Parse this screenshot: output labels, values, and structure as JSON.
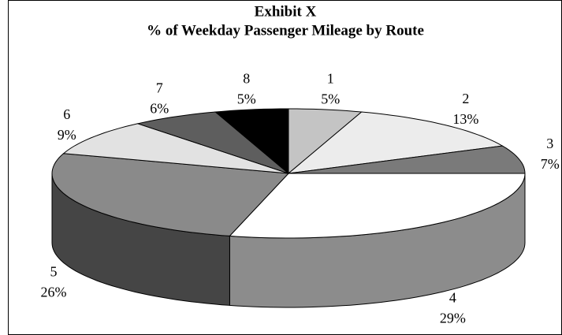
{
  "chart_data": {
    "type": "pie",
    "title": "Exhibit X",
    "subtitle": "% of Weekday Passenger Mileage by Route",
    "categories": [
      "1",
      "2",
      "3",
      "4",
      "5",
      "6",
      "7",
      "8"
    ],
    "values": [
      5,
      13,
      7,
      29,
      26,
      9,
      6,
      5
    ],
    "value_labels": [
      "5%",
      "13%",
      "7%",
      "29%",
      "26%",
      "9%",
      "6%",
      "5%"
    ],
    "colors": [
      "#c4c4c4",
      "#ececec",
      "#7a7a7a",
      "#ffffff",
      "#8a8a8a",
      "#e2e2e2",
      "#5e5e5e",
      "#000000"
    ]
  }
}
